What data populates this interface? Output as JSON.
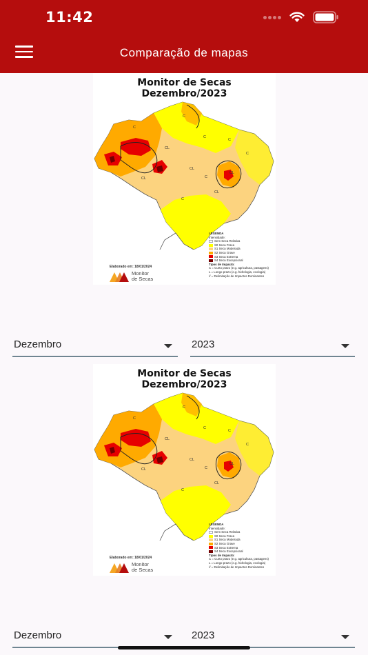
{
  "status": {
    "time": "11:42"
  },
  "appbar": {
    "title": "Comparação de mapas",
    "menu_icon": "hamburger-menu-icon"
  },
  "maps": [
    {
      "title_line1": "Monitor de Secas",
      "title_line2": "Dezembro/2023",
      "legend": {
        "heading": "LEGENDA",
        "intensity_label": "Intensidade:",
        "items": [
          {
            "label": "Sem Seca Relativa",
            "color": "#ffffff"
          },
          {
            "label": "S0 Seca Fraca",
            "color": "#ffff00"
          },
          {
            "label": "S1 Seca Moderada",
            "color": "#fcd37f"
          },
          {
            "label": "S2 Seca Grave",
            "color": "#ffaa00"
          },
          {
            "label": "S3 Seca Extrema",
            "color": "#e60000"
          },
          {
            "label": "S4 Seca Excepcional",
            "color": "#730000"
          }
        ],
        "impact_heading": "Tipos de Impacto:",
        "impact_items": [
          "C = Curto prazo (e.g. agricultura, pastagens)",
          "L = Longo prazo (e.g. hidrologia, ecologia)",
          "\\/ = Delimitação de Impactos Dominantes"
        ]
      },
      "elaborated": "Elaborado em: 18/01/2024",
      "logo_line1": "Monitor",
      "logo_line2": "de Secas"
    },
    {
      "title_line1": "Monitor de Secas",
      "title_line2": "Dezembro/2023",
      "legend": {
        "heading": "LEGENDA",
        "intensity_label": "Intensidade:",
        "items": [
          {
            "label": "Sem Seca Relativa",
            "color": "#ffffff"
          },
          {
            "label": "S0 Seca Fraca",
            "color": "#ffff00"
          },
          {
            "label": "S1 Seca Moderada",
            "color": "#fcd37f"
          },
          {
            "label": "S2 Seca Grave",
            "color": "#ffaa00"
          },
          {
            "label": "S3 Seca Extrema",
            "color": "#e60000"
          },
          {
            "label": "S4 Seca Excepcional",
            "color": "#730000"
          }
        ],
        "impact_heading": "Tipos de Impacto:",
        "impact_items": [
          "C = Curto prazo (e.g. agricultura, pastagens)",
          "L = Longo prazo (e.g. hidrologia, ecologia)",
          "\\/ = Delimitação de Impactos Dominantes"
        ]
      },
      "elaborated": "Elaborado em: 18/01/2024",
      "logo_line1": "Monitor",
      "logo_line2": "de Secas"
    }
  ],
  "selectors": [
    {
      "month": "Dezembro",
      "year": "2023"
    },
    {
      "month": "Dezembro",
      "year": "2023"
    }
  ],
  "colors": {
    "accent": "#b50d0d",
    "underline": "#6f8591"
  }
}
